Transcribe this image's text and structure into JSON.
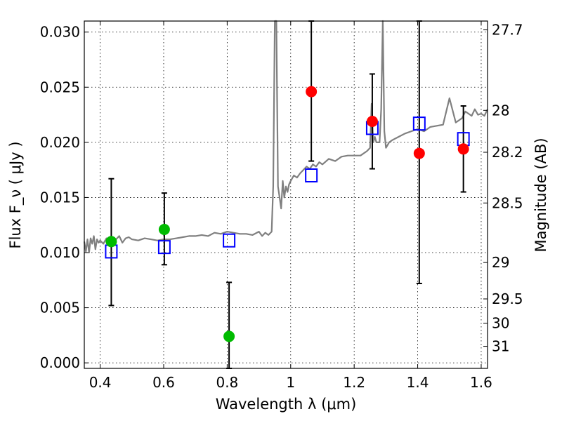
{
  "chart_data": {
    "type": "scatter",
    "title": "",
    "xlabel": "Wavelength  λ (μm)",
    "ylabel": "Flux  F_ν  ( μJy )",
    "y2label": "Magnitude (AB)",
    "xlim": [
      0.35,
      1.62
    ],
    "ylim": [
      -0.0005,
      0.031
    ],
    "grid": true,
    "x_ticks": [
      0.4,
      0.6,
      0.8,
      1.0,
      1.2,
      1.4,
      1.6
    ],
    "x_tick_labels": [
      "0.4",
      "0.6",
      "0.8",
      "1",
      "1.2",
      "1.4",
      "1.6"
    ],
    "y_ticks": [
      0.0,
      0.005,
      0.01,
      0.015,
      0.02,
      0.025,
      0.03
    ],
    "y_tick_labels": [
      "0.000",
      "0.005",
      "0.010",
      "0.015",
      "0.020",
      "0.025",
      "0.030"
    ],
    "y2_ticks": [
      {
        "label": "27.7",
        "flux": 0.0302
      },
      {
        "label": "28",
        "flux": 0.0229
      },
      {
        "label": "28.2",
        "flux": 0.0191
      },
      {
        "label": "28.5",
        "flux": 0.0145
      },
      {
        "label": "29",
        "flux": 0.0091
      },
      {
        "label": "29.5",
        "flux": 0.0058
      },
      {
        "label": "30",
        "flux": 0.0036
      },
      {
        "label": "31",
        "flux": 0.0015
      }
    ],
    "template_spectrum": {
      "color": "#808080",
      "x": [
        0.35,
        0.355,
        0.36,
        0.365,
        0.37,
        0.375,
        0.38,
        0.385,
        0.39,
        0.395,
        0.4,
        0.41,
        0.42,
        0.43,
        0.44,
        0.45,
        0.46,
        0.47,
        0.48,
        0.49,
        0.5,
        0.52,
        0.54,
        0.56,
        0.58,
        0.6,
        0.62,
        0.64,
        0.66,
        0.68,
        0.7,
        0.72,
        0.74,
        0.76,
        0.78,
        0.8,
        0.82,
        0.84,
        0.86,
        0.88,
        0.9,
        0.91,
        0.92,
        0.93,
        0.94,
        0.945,
        0.95,
        0.955,
        0.96,
        0.965,
        0.97,
        0.975,
        0.98,
        0.985,
        0.99,
        0.995,
        1.0,
        1.01,
        1.02,
        1.03,
        1.04,
        1.05,
        1.06,
        1.07,
        1.08,
        1.09,
        1.1,
        1.12,
        1.14,
        1.16,
        1.18,
        1.2,
        1.22,
        1.24,
        1.25,
        1.255,
        1.26,
        1.265,
        1.27,
        1.28,
        1.285,
        1.29,
        1.295,
        1.3,
        1.31,
        1.32,
        1.34,
        1.36,
        1.38,
        1.4,
        1.42,
        1.44,
        1.46,
        1.48,
        1.5,
        1.52,
        1.54,
        1.55,
        1.56,
        1.57,
        1.58,
        1.59,
        1.6,
        1.61,
        1.62
      ],
      "y": [
        0.011,
        0.0101,
        0.0112,
        0.01,
        0.0113,
        0.0108,
        0.0115,
        0.0103,
        0.0112,
        0.0109,
        0.0111,
        0.0108,
        0.0113,
        0.0111,
        0.0113,
        0.0112,
        0.0115,
        0.0109,
        0.0113,
        0.0114,
        0.0112,
        0.0111,
        0.0113,
        0.0112,
        0.0111,
        0.0112,
        0.0112,
        0.0113,
        0.0114,
        0.0115,
        0.0115,
        0.0116,
        0.0115,
        0.0118,
        0.0117,
        0.0119,
        0.0118,
        0.0117,
        0.0117,
        0.0116,
        0.0119,
        0.0115,
        0.0118,
        0.0116,
        0.0119,
        0.016,
        0.031,
        0.031,
        0.016,
        0.015,
        0.014,
        0.0165,
        0.015,
        0.016,
        0.0155,
        0.0162,
        0.0165,
        0.017,
        0.0168,
        0.0172,
        0.0175,
        0.0178,
        0.0176,
        0.018,
        0.0178,
        0.0182,
        0.018,
        0.0185,
        0.0183,
        0.0187,
        0.0188,
        0.0188,
        0.0188,
        0.0192,
        0.0195,
        0.0235,
        0.02,
        0.0205,
        0.02,
        0.02,
        0.023,
        0.031,
        0.021,
        0.0195,
        0.02,
        0.0202,
        0.0205,
        0.0208,
        0.021,
        0.0212,
        0.021,
        0.0214,
        0.0215,
        0.0216,
        0.024,
        0.0218,
        0.0222,
        0.0228,
        0.0226,
        0.0224,
        0.023,
        0.0225,
        0.0226,
        0.0224,
        0.023
      ]
    },
    "series": [
      {
        "marker": "circle",
        "color": "#00bb00",
        "points": [
          {
            "x": 0.435,
            "y": 0.011,
            "ylow": 0.0052,
            "yhigh": 0.0167
          },
          {
            "x": 0.602,
            "y": 0.0121,
            "ylow": 0.0089,
            "yhigh": 0.0154
          },
          {
            "x": 0.806,
            "y": 0.0024,
            "ylow": -0.0005,
            "yhigh": 0.0073
          }
        ]
      },
      {
        "marker": "circle",
        "color": "#ff0000",
        "points": [
          {
            "x": 1.065,
            "y": 0.0246,
            "ylow": 0.0183,
            "yhigh": 0.031
          },
          {
            "x": 1.257,
            "y": 0.0219,
            "ylow": 0.0176,
            "yhigh": 0.0262
          },
          {
            "x": 1.405,
            "y": 0.019,
            "ylow": 0.0072,
            "yhigh": 0.031
          },
          {
            "x": 1.544,
            "y": 0.0194,
            "ylow": 0.0155,
            "yhigh": 0.0233
          }
        ]
      },
      {
        "marker": "square",
        "color": "#0000ff",
        "points": [
          {
            "x": 0.435,
            "y": 0.0101
          },
          {
            "x": 0.602,
            "y": 0.0105
          },
          {
            "x": 0.806,
            "y": 0.0111
          },
          {
            "x": 1.065,
            "y": 0.017
          },
          {
            "x": 1.257,
            "y": 0.0213
          },
          {
            "x": 1.405,
            "y": 0.0217
          },
          {
            "x": 1.544,
            "y": 0.0203
          }
        ]
      }
    ]
  }
}
